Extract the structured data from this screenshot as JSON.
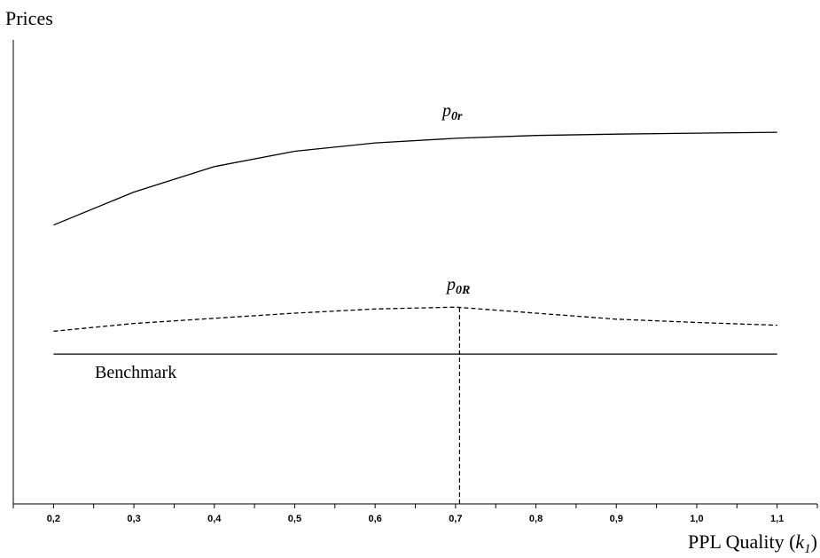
{
  "chart_data": {
    "type": "line",
    "title": "",
    "ylabel": "Prices",
    "xlabel": {
      "main": "PPL Quality (",
      "var": "k",
      "sub": "1",
      "close": ")"
    },
    "x": [
      0.2,
      0.3,
      0.4,
      0.5,
      0.6,
      0.7,
      0.8,
      0.9,
      1.0,
      1.1
    ],
    "x_tick_labels": [
      "0,2",
      "0,3",
      "0,4",
      "0,5",
      "0,6",
      "0,7",
      "0,8",
      "0,9",
      "1,0",
      "1,1"
    ],
    "xlim": [
      0.15,
      1.15
    ],
    "ylim": [
      0,
      100
    ],
    "grid": false,
    "series": [
      {
        "label_main": "p",
        "label_sub": "0r",
        "style": "solid",
        "values": [
          60.1,
          67.2,
          72.7,
          76.0,
          77.8,
          78.8,
          79.4,
          79.7,
          79.9,
          80.1
        ]
      },
      {
        "label_main": "p",
        "label_sub": "0R",
        "style": "dashed",
        "values": [
          37.2,
          38.9,
          40.0,
          41.1,
          42.0,
          42.4,
          41.1,
          39.8,
          39.1,
          38.5
        ]
      },
      {
        "name": "Benchmark",
        "style": "solid",
        "values": [
          32.3,
          32.3,
          32.3,
          32.3,
          32.3,
          32.3,
          32.3,
          32.3,
          32.3,
          32.3
        ]
      }
    ],
    "annotations": [
      {
        "type": "vertical-dashed-line",
        "x": 0.705,
        "from_y": 0,
        "to_y": 42.4
      }
    ]
  }
}
